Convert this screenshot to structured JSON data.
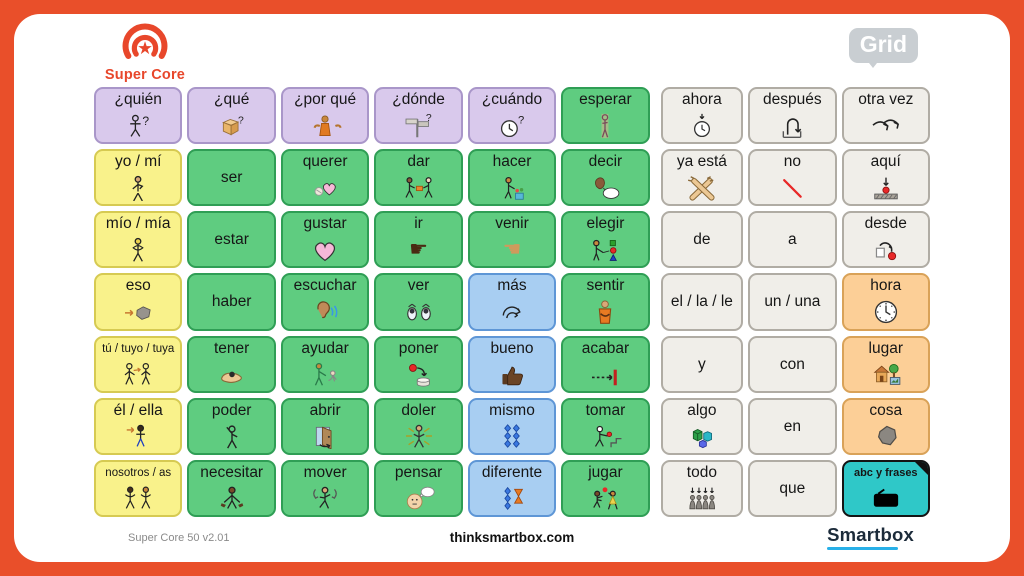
{
  "header": {
    "app_logo_text": "Super Core",
    "grid_logo_text": "Grid"
  },
  "footer": {
    "version": "Super Core 50 v2.01",
    "website": "thinksmartbox.com",
    "brand": "Smartbox"
  },
  "colors": {
    "frame": "#e94f2a",
    "accent": "#e8472b",
    "purple": "#d9c9ec",
    "green": "#5fcc80",
    "yellow": "#f9f28b",
    "gray": "#f0eee9",
    "blue": "#a8cef2",
    "orange": "#fccf97",
    "teal": "#2fc8c8"
  },
  "grid": {
    "rows": [
      {
        "cells": [
          {
            "label": "¿quién",
            "color": "purple",
            "icon": "person-question"
          },
          {
            "label": "¿qué",
            "color": "purple",
            "icon": "box-question"
          },
          {
            "label": "¿por qué",
            "color": "purple",
            "icon": "shrug-person"
          },
          {
            "label": "¿dónde",
            "color": "purple",
            "icon": "signpost-question"
          },
          {
            "label": "¿cuándo",
            "color": "purple",
            "icon": "clock-question"
          },
          {
            "label": "esperar",
            "color": "green",
            "icon": "waiting-person"
          },
          {
            "label": "ahora",
            "color": "gray",
            "icon": "clock-arrow"
          },
          {
            "label": "después",
            "color": "gray",
            "icon": "return-arrow"
          },
          {
            "label": "otra vez",
            "color": "gray",
            "icon": "again-arrows"
          }
        ]
      },
      {
        "cells": [
          {
            "label": "yo / mí",
            "color": "yellow",
            "icon": "self-person"
          },
          {
            "label": "ser",
            "color": "green",
            "icon": null
          },
          {
            "label": "querer",
            "color": "green",
            "icon": "hand-heart"
          },
          {
            "label": "dar",
            "color": "green",
            "icon": "give-people"
          },
          {
            "label": "hacer",
            "color": "green",
            "icon": "make-person"
          },
          {
            "label": "decir",
            "color": "green",
            "icon": "speech-head"
          },
          {
            "label": "ya está",
            "color": "gray",
            "icon": "done-hands"
          },
          {
            "label": "no",
            "color": "gray",
            "icon": "no-line"
          },
          {
            "label": "aquí",
            "color": "gray",
            "icon": "here-marker"
          }
        ]
      },
      {
        "cells": [
          {
            "label": "mío / mía",
            "color": "yellow",
            "icon": "hug-self"
          },
          {
            "label": "estar",
            "color": "green",
            "icon": null
          },
          {
            "label": "gustar",
            "color": "green",
            "icon": "heart"
          },
          {
            "label": "ir",
            "color": "green",
            "icon": "point-hand"
          },
          {
            "label": "venir",
            "color": "green",
            "icon": "come-hand"
          },
          {
            "label": "elegir",
            "color": "green",
            "icon": "choose-shapes"
          },
          {
            "label": "de",
            "color": "gray",
            "icon": null
          },
          {
            "label": "a",
            "color": "gray",
            "icon": null
          },
          {
            "label": "desde",
            "color": "gray",
            "icon": "from-arrow"
          }
        ]
      },
      {
        "cells": [
          {
            "label": "eso",
            "color": "yellow",
            "icon": "that-blob"
          },
          {
            "label": "haber",
            "color": "green",
            "icon": null
          },
          {
            "label": "escuchar",
            "color": "green",
            "icon": "ear-listen"
          },
          {
            "label": "ver",
            "color": "green",
            "icon": "eyes"
          },
          {
            "label": "más",
            "color": "blue",
            "icon": "more-arrows"
          },
          {
            "label": "sentir",
            "color": "green",
            "icon": "feel-person"
          },
          {
            "label": "el / la / le",
            "color": "gray",
            "icon": null
          },
          {
            "label": "un / una",
            "color": "gray",
            "icon": null
          },
          {
            "label": "hora",
            "color": "orange",
            "icon": "clock"
          }
        ]
      },
      {
        "cells": [
          {
            "label": "tú / tuyo / tuya",
            "color": "yellow",
            "icon": "you-people"
          },
          {
            "label": "tener",
            "color": "green",
            "icon": "have-hand"
          },
          {
            "label": "ayudar",
            "color": "green",
            "icon": "help-people"
          },
          {
            "label": "poner",
            "color": "green",
            "icon": "put-ball"
          },
          {
            "label": "bueno",
            "color": "blue",
            "icon": "thumbs-up"
          },
          {
            "label": "acabar",
            "color": "green",
            "icon": "finish-arrow"
          },
          {
            "label": "y",
            "color": "gray",
            "icon": null
          },
          {
            "label": "con",
            "color": "gray",
            "icon": null
          },
          {
            "label": "lugar",
            "color": "orange",
            "icon": "place-house"
          }
        ]
      },
      {
        "cells": [
          {
            "label": "él / ella",
            "color": "yellow",
            "icon": "he-she-person"
          },
          {
            "label": "poder",
            "color": "green",
            "icon": "can-person"
          },
          {
            "label": "abrir",
            "color": "green",
            "icon": "open-door"
          },
          {
            "label": "doler",
            "color": "green",
            "icon": "hurt-person"
          },
          {
            "label": "mismo",
            "color": "blue",
            "icon": "same-diamonds"
          },
          {
            "label": "tomar",
            "color": "green",
            "icon": "take-person"
          },
          {
            "label": "algo",
            "color": "gray",
            "icon": "blocks"
          },
          {
            "label": "en",
            "color": "gray",
            "icon": null
          },
          {
            "label": "cosa",
            "color": "orange",
            "icon": "thing-blob"
          }
        ]
      },
      {
        "cells": [
          {
            "label": "nosotros / as",
            "color": "yellow",
            "icon": "we-people"
          },
          {
            "label": "necesitar",
            "color": "green",
            "icon": "need-person"
          },
          {
            "label": "mover",
            "color": "green",
            "icon": "move-person"
          },
          {
            "label": "pensar",
            "color": "green",
            "icon": "think-head"
          },
          {
            "label": "diferente",
            "color": "blue",
            "icon": "different-shapes"
          },
          {
            "label": "jugar",
            "color": "green",
            "icon": "play-children"
          },
          {
            "label": "todo",
            "color": "gray",
            "icon": "all-figures"
          },
          {
            "label": "que",
            "color": "gray",
            "icon": null
          },
          {
            "label": "abc y frases",
            "color": "teal",
            "icon": "keyboard"
          }
        ]
      }
    ]
  }
}
